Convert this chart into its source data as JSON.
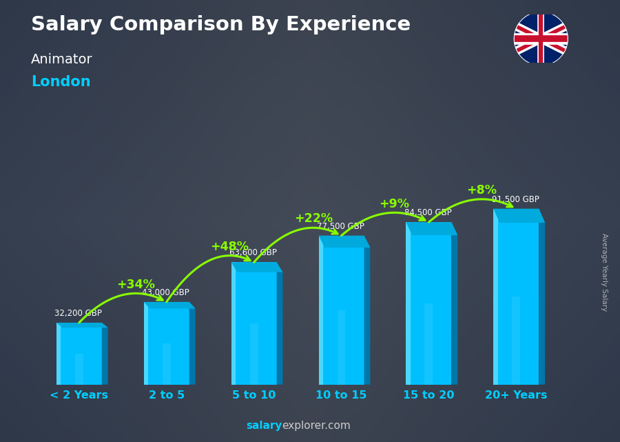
{
  "title": "Salary Comparison By Experience",
  "subtitle1": "Animator",
  "subtitle2": "London",
  "ylabel": "Average Yearly Salary",
  "watermark_bold": "salary",
  "watermark_normal": "explorer.com",
  "categories": [
    "< 2 Years",
    "2 to 5",
    "5 to 10",
    "10 to 15",
    "15 to 20",
    "20+ Years"
  ],
  "values": [
    32200,
    43000,
    63600,
    77500,
    84500,
    91500
  ],
  "labels": [
    "32,200 GBP",
    "43,000 GBP",
    "63,600 GBP",
    "77,500 GBP",
    "84,500 GBP",
    "91,500 GBP"
  ],
  "pct_changes": [
    "+34%",
    "+48%",
    "+22%",
    "+9%",
    "+8%"
  ],
  "bar_color_main": "#00BFFF",
  "bar_color_side": "#0077AA",
  "bar_color_top": "#00AADD",
  "bar_color_highlight": "#80E8FF",
  "bar_width": 0.52,
  "bar_depth": 0.07,
  "title_color": "#FFFFFF",
  "subtitle1_color": "#FFFFFF",
  "subtitle2_color": "#00CFFF",
  "label_color": "#FFFFFF",
  "pct_color": "#88FF00",
  "category_color": "#00CFFF",
  "category_number_color": "#FFFFFF",
  "watermark_color": "#00CFFF",
  "watermark_normal_color": "#CCCCCC",
  "ylabel_color": "#CCCCCC",
  "ylim": [
    0,
    115000
  ],
  "bg_color": "#3a4050"
}
